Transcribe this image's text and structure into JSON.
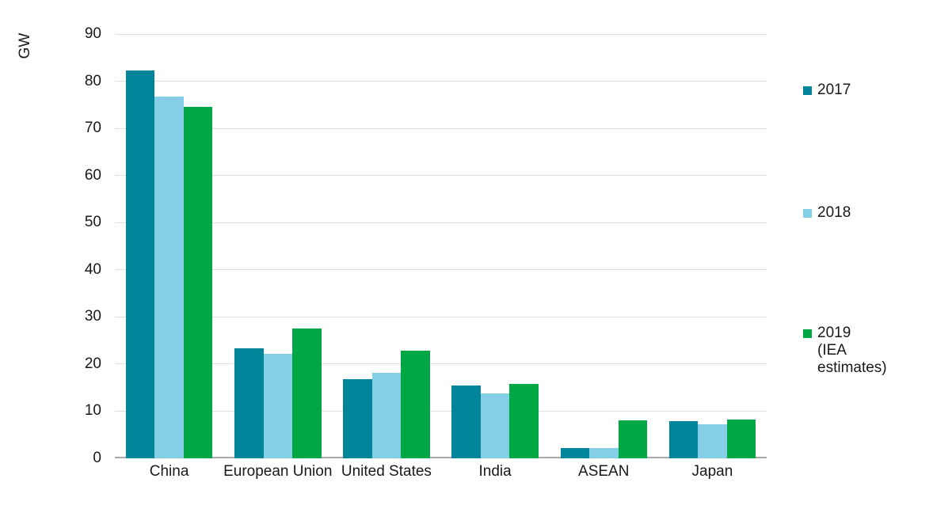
{
  "chart_data": {
    "type": "bar",
    "title": "",
    "unit_label": "GW",
    "xlabel": "",
    "ylabel": "GW",
    "categories": [
      "China",
      "European Union",
      "United States",
      "India",
      "ASEAN",
      "Japan"
    ],
    "series": [
      {
        "name": "2017",
        "color": "#00859B",
        "values": [
          82.2,
          23.3,
          16.8,
          15.5,
          2.2,
          7.9
        ]
      },
      {
        "name": "2018",
        "color": "#84CFE5",
        "values": [
          76.7,
          22.2,
          18.2,
          13.8,
          2.2,
          7.2
        ]
      },
      {
        "name": "2019 (IEA estimates)",
        "color": "#00A845",
        "values": [
          74.5,
          27.5,
          22.8,
          15.7,
          8.1,
          8.2
        ]
      }
    ],
    "ylim": [
      0,
      90
    ],
    "yticks": [
      0,
      10,
      20,
      30,
      40,
      50,
      60,
      70,
      80,
      90
    ],
    "grid": true,
    "legend_position": "right",
    "colors": {
      "gridline": "#dddddd",
      "axis_line": "#a8a8a8",
      "text": "#191919",
      "background": "#ffffff"
    }
  }
}
